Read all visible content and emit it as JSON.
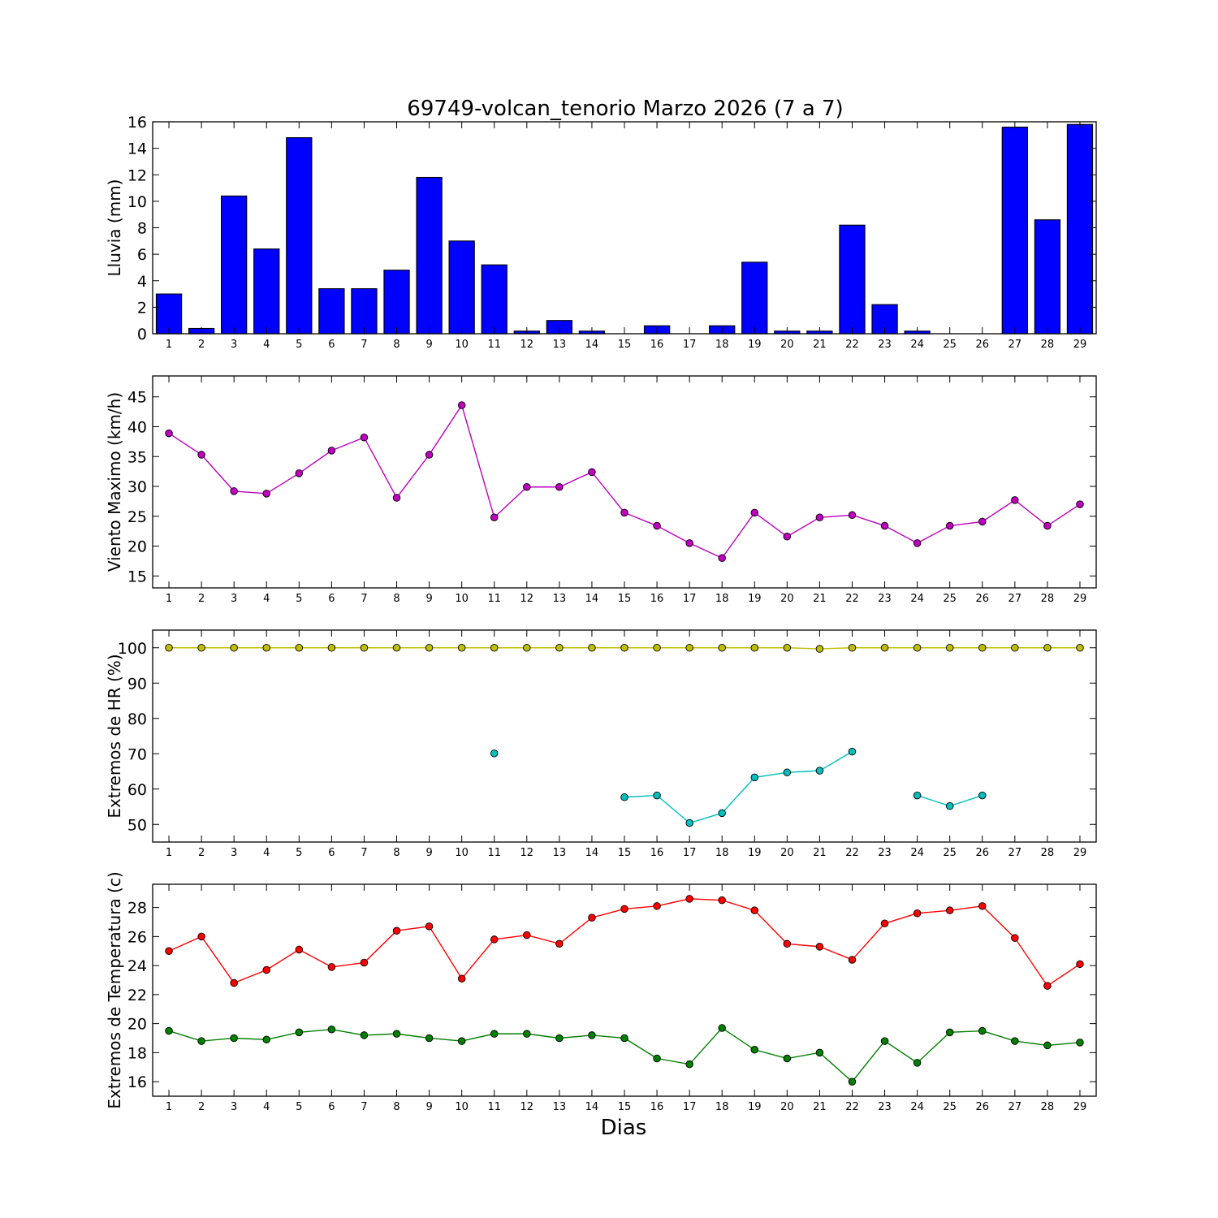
{
  "figure": {
    "title": "69749-volcan_tenorio Marzo 2026  (7 a 7)",
    "xlabel": "Dias"
  },
  "colors": {
    "rain": "#0000ff",
    "wind": "#bf00bf",
    "hr_max": "#bfbf00",
    "hr_min": "#00bfbf",
    "temp_max": "#ff0000",
    "temp_min": "#008000"
  },
  "chart_data": [
    {
      "type": "bar",
      "ylabel": "Lluvia (mm)",
      "categories": [
        "1",
        "2",
        "3",
        "4",
        "5",
        "6",
        "7",
        "8",
        "9",
        "10",
        "11",
        "12",
        "13",
        "14",
        "15",
        "16",
        "17",
        "18",
        "19",
        "20",
        "21",
        "22",
        "23",
        "24",
        "25",
        "26",
        "27",
        "28",
        "29"
      ],
      "values": [
        3.0,
        0.4,
        10.4,
        6.4,
        14.8,
        3.4,
        3.4,
        4.8,
        11.8,
        7.0,
        5.2,
        0.2,
        1.0,
        0.2,
        0.0,
        0.6,
        0.0,
        0.6,
        5.4,
        0.2,
        0.2,
        8.2,
        2.2,
        0.2,
        0.0,
        0.0,
        15.6,
        8.6,
        15.8
      ],
      "ylim": [
        0,
        16
      ],
      "yticks": [
        0,
        2,
        4,
        6,
        8,
        10,
        12,
        14,
        16
      ],
      "grid": false
    },
    {
      "type": "line",
      "ylabel": "Viento Maximo (km/h)",
      "x": [
        1,
        2,
        3,
        4,
        5,
        6,
        7,
        8,
        9,
        10,
        11,
        12,
        13,
        14,
        15,
        16,
        17,
        18,
        19,
        20,
        21,
        22,
        23,
        24,
        25,
        26,
        27,
        28,
        29
      ],
      "series": [
        {
          "values": [
            38.9,
            35.3,
            29.2,
            28.8,
            32.2,
            36.0,
            38.2,
            28.1,
            35.3,
            43.6,
            24.8,
            29.9,
            29.9,
            32.4,
            25.6,
            23.4,
            20.5,
            18.0,
            25.6,
            21.6,
            24.8,
            25.2,
            23.4,
            20.5,
            23.4,
            24.1,
            27.7,
            23.4,
            27.0
          ]
        }
      ],
      "ylim": [
        13,
        48.5
      ],
      "yticks": [
        15,
        20,
        25,
        30,
        35,
        40,
        45
      ],
      "grid": false
    },
    {
      "type": "line",
      "ylabel": "Extremos de HR (%)",
      "x": [
        1,
        2,
        3,
        4,
        5,
        6,
        7,
        8,
        9,
        10,
        11,
        12,
        13,
        14,
        15,
        16,
        17,
        18,
        19,
        20,
        21,
        22,
        23,
        24,
        25,
        26,
        27,
        28,
        29
      ],
      "series": [
        {
          "values": [
            100,
            100,
            100,
            100,
            100,
            100,
            100,
            100,
            100,
            100,
            100,
            100,
            100,
            100,
            100,
            100,
            100,
            100,
            100,
            100,
            99.7,
            100,
            100,
            100,
            100,
            100,
            100,
            100,
            100
          ]
        },
        {
          "values": [
            null,
            null,
            null,
            null,
            null,
            null,
            null,
            null,
            null,
            null,
            70.1,
            null,
            null,
            null,
            57.7,
            58.2,
            50.4,
            53.2,
            63.3,
            64.7,
            65.2,
            70.6,
            null,
            58.2,
            55.2,
            58.2,
            null,
            null,
            null
          ]
        }
      ],
      "ylim": [
        45,
        105
      ],
      "yticks": [
        50,
        60,
        70,
        80,
        90,
        100
      ],
      "grid": false
    },
    {
      "type": "line",
      "ylabel": "Extremos de Temperatura (c)",
      "x": [
        1,
        2,
        3,
        4,
        5,
        6,
        7,
        8,
        9,
        10,
        11,
        12,
        13,
        14,
        15,
        16,
        17,
        18,
        19,
        20,
        21,
        22,
        23,
        24,
        25,
        26,
        27,
        28,
        29
      ],
      "series": [
        {
          "values": [
            25.0,
            26.0,
            22.8,
            23.7,
            25.1,
            23.9,
            24.2,
            26.4,
            26.7,
            23.1,
            25.8,
            26.1,
            25.5,
            27.3,
            27.9,
            28.1,
            28.6,
            28.5,
            27.8,
            25.5,
            25.3,
            24.4,
            26.9,
            27.6,
            27.8,
            28.1,
            25.9,
            22.6,
            24.1
          ]
        },
        {
          "values": [
            19.5,
            18.8,
            19.0,
            18.9,
            19.4,
            19.6,
            19.2,
            19.3,
            19.0,
            18.8,
            19.3,
            19.3,
            19.0,
            19.2,
            19.0,
            17.6,
            17.2,
            19.7,
            18.2,
            17.6,
            18.0,
            16.0,
            18.8,
            17.3,
            19.4,
            19.5,
            18.8,
            18.5,
            18.7
          ]
        }
      ],
      "ylim": [
        15,
        29.6
      ],
      "yticks": [
        16,
        18,
        20,
        22,
        24,
        26,
        28
      ],
      "grid": false
    }
  ]
}
